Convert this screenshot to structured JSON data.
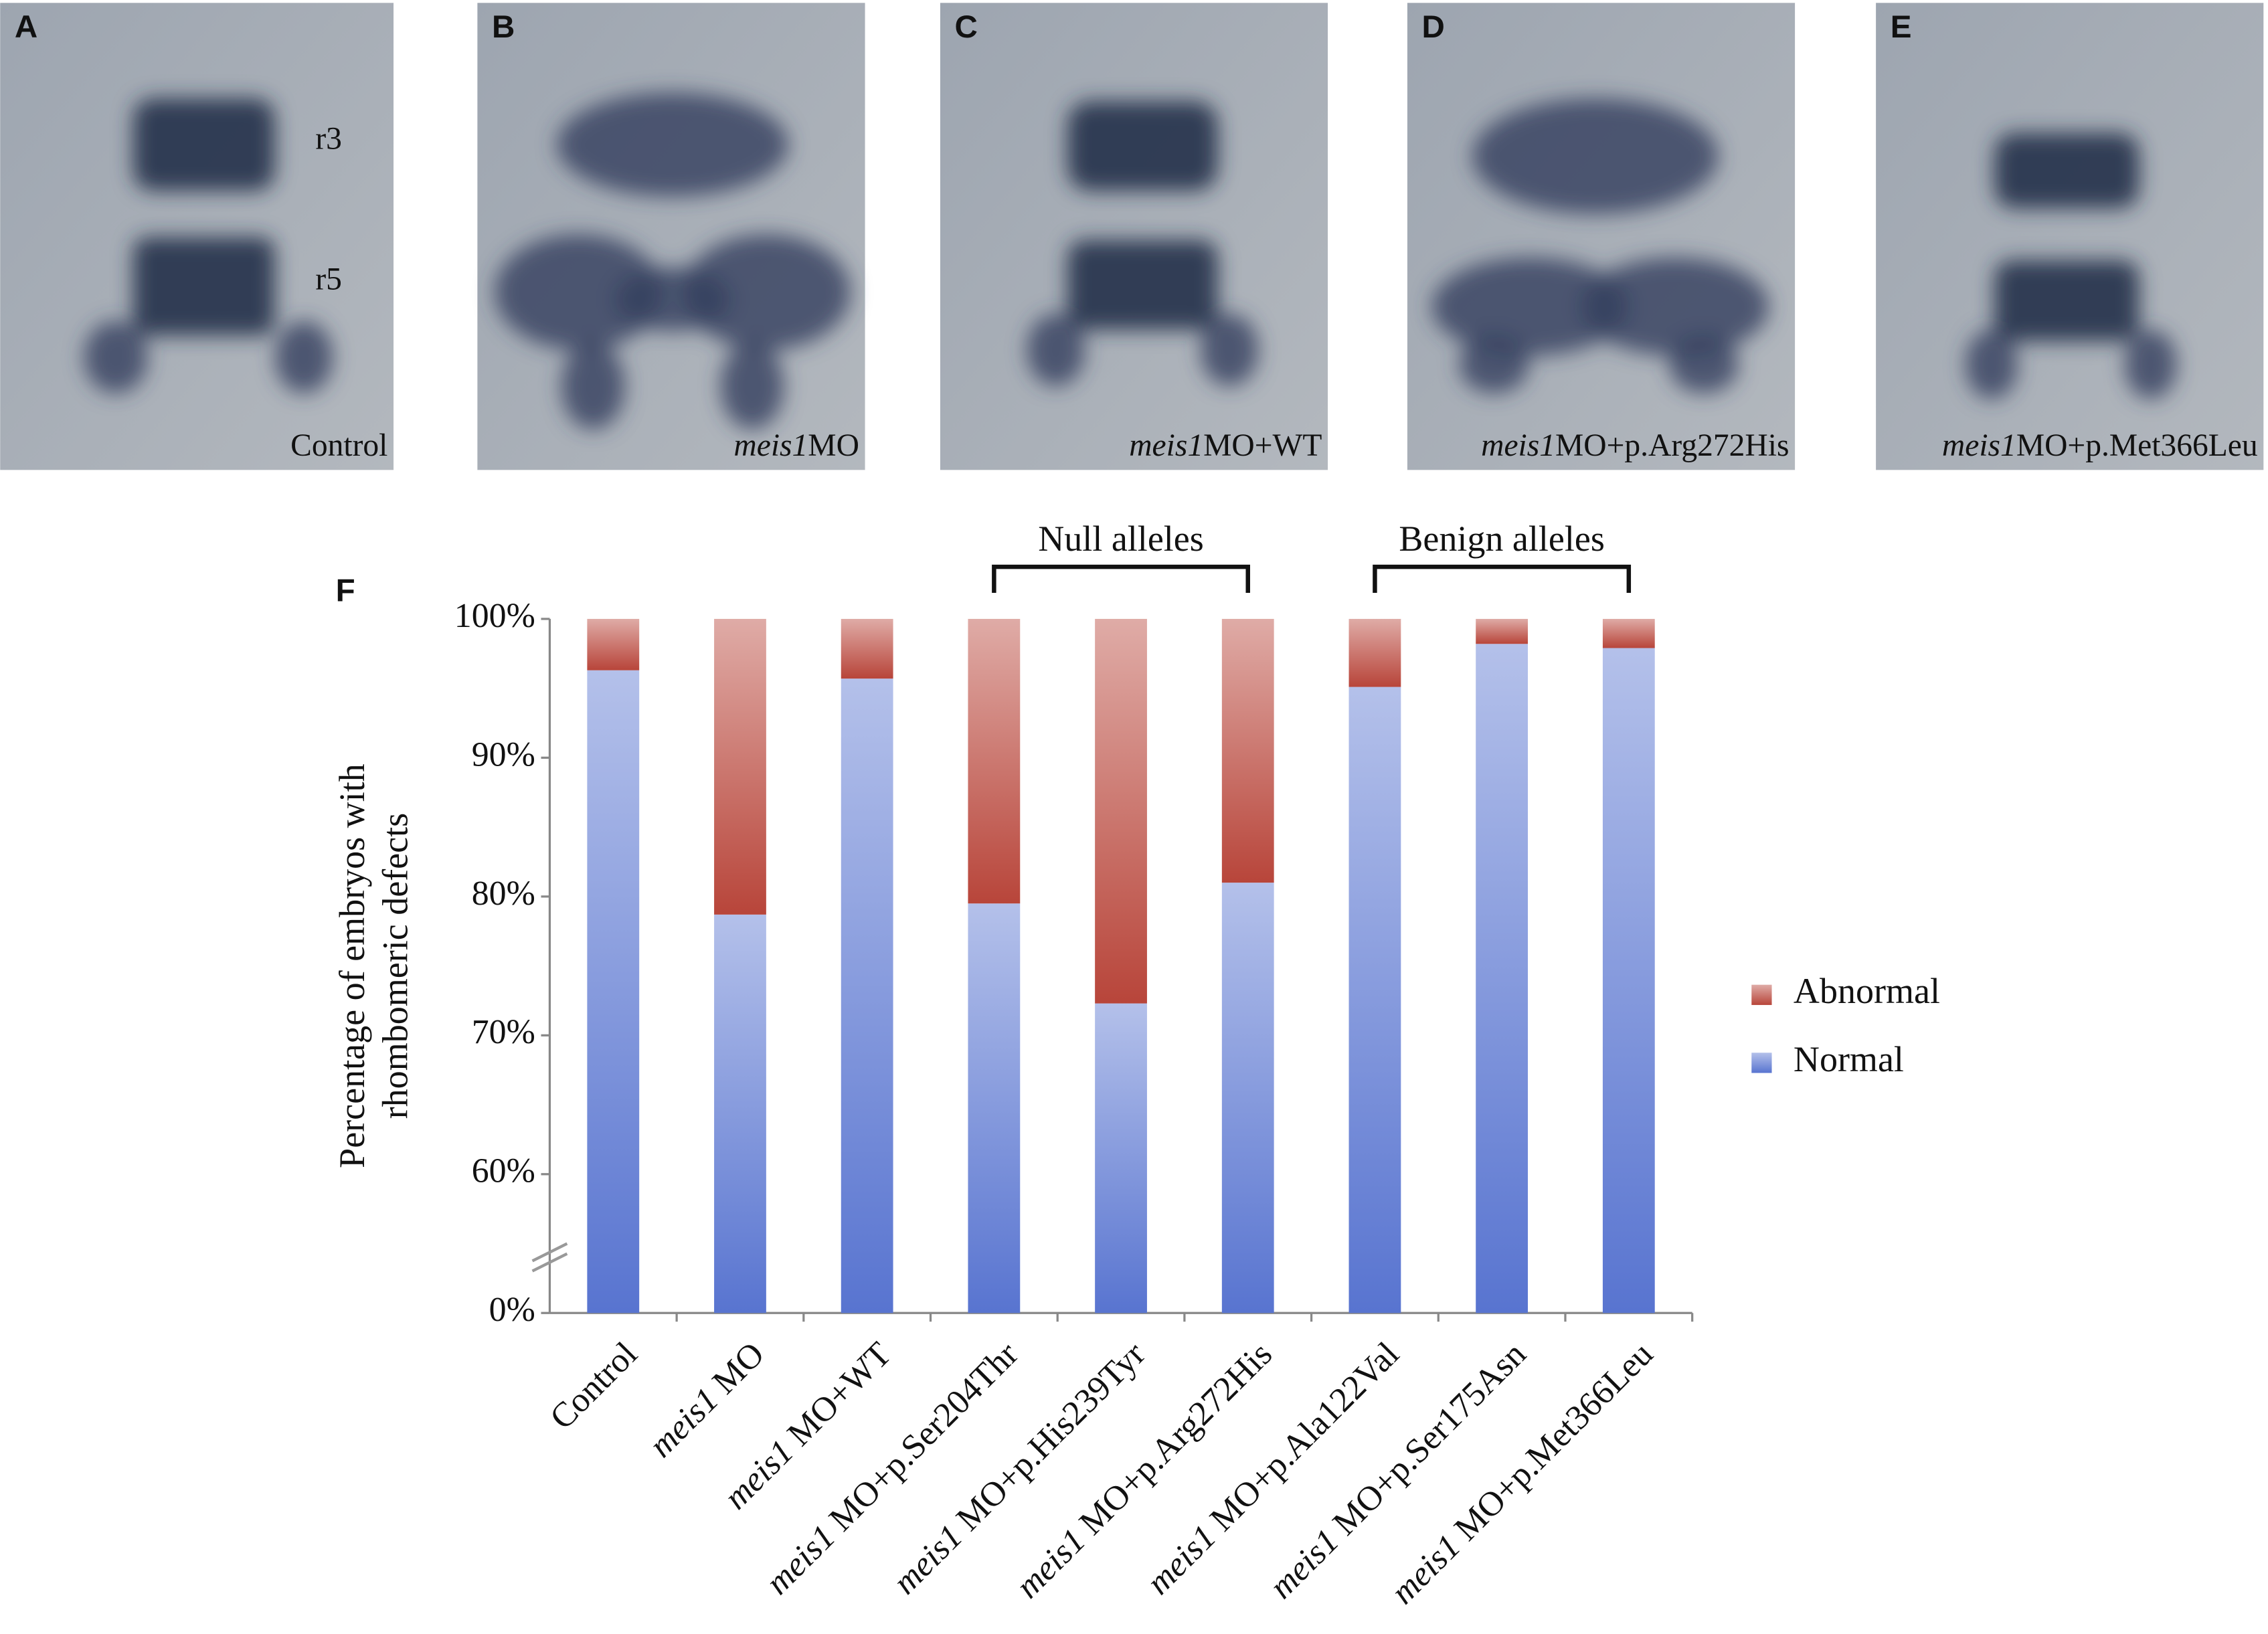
{
  "panels": [
    {
      "letter": "A",
      "caption": [
        {
          "text": "Control"
        }
      ],
      "labels": [
        "r3",
        "r5"
      ]
    },
    {
      "letter": "B",
      "caption": [
        {
          "text": "meis1",
          "italic": true
        },
        {
          "text": "MO"
        }
      ]
    },
    {
      "letter": "C",
      "caption": [
        {
          "text": "meis1",
          "italic": true
        },
        {
          "text": "MO+WT"
        }
      ]
    },
    {
      "letter": "D",
      "caption": [
        {
          "text": "meis1",
          "italic": true
        },
        {
          "text": "MO+p.Arg272His"
        }
      ]
    },
    {
      "letter": "E",
      "caption": [
        {
          "text": "meis1",
          "italic": true
        },
        {
          "text": "MO+p.Met366Leu"
        }
      ]
    }
  ],
  "chart_data": {
    "type": "stacked_bar",
    "panel_letter": "F",
    "ylabel": [
      "Percentage of embryos with",
      "rhombomeric defects"
    ],
    "categories": [
      "Control",
      "meis1 MO",
      "meis1 MO+WT",
      "meis1 MO+p.Ser204Thr",
      "meis1 MO+p.His239Tyr",
      "meis1 MO+p.Arg272His",
      "meis1 MO+p.Ala122Val",
      "meis1 MO+p.Ser175Asn",
      "meis1 MO+p.Met366Leu"
    ],
    "series": [
      {
        "name": "Normal",
        "color": "#5874d0",
        "values": [
          96.3,
          78.7,
          95.7,
          79.5,
          72.3,
          81.0,
          95.1,
          98.2,
          97.9
        ]
      },
      {
        "name": "Abnormal",
        "color": "#b8453a",
        "values": [
          3.7,
          21.3,
          4.3,
          20.5,
          27.7,
          19.0,
          4.9,
          1.8,
          2.1
        ]
      }
    ],
    "ylim": [
      0,
      100
    ],
    "axis_break": [
      0,
      60
    ],
    "yticks": [
      {
        "value": 0,
        "label": "0%"
      },
      {
        "value": 60,
        "label": "60%"
      },
      {
        "value": 70,
        "label": "70%"
      },
      {
        "value": 80,
        "label": "80%"
      },
      {
        "value": 90,
        "label": "90%"
      },
      {
        "value": 100,
        "label": "100%"
      }
    ],
    "annotations": [
      {
        "text": "Null alleles",
        "from": 3,
        "to": 5
      },
      {
        "text": "Benign alleles",
        "from": 6,
        "to": 8
      }
    ],
    "legend": "right"
  }
}
